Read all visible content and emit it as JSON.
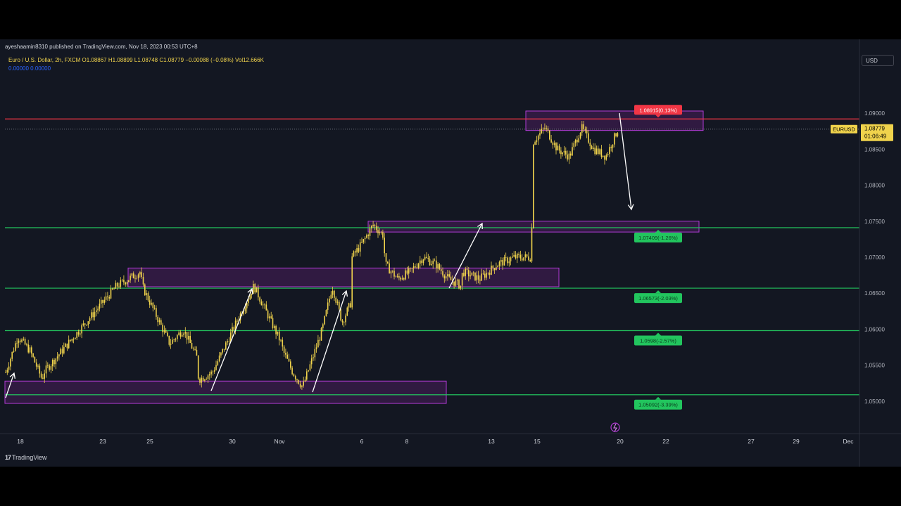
{
  "publisher": "ayeshaamin8310 published on TradingView.com, Nov 18, 2023 00:53 UTC+8",
  "legend": {
    "line1": "Euro / U.S. Dollar, 2h, FXCM  O1.08867  H1.08899  L1.08748  C1.08779  −0.00088 (−0.08%)  Vol12.666K",
    "line2": "0.00000  0.00000"
  },
  "currency_button": "USD",
  "brand": "TradingView",
  "colors": {
    "background": "#131722",
    "candle": "#f0d34c",
    "resistance_line": "#f23645",
    "support_line": "#22c55e",
    "zone": "#9c27b0",
    "arrow": "#ffffff",
    "price_tag": "#f0d34c"
  },
  "chart_data": {
    "type": "candlestick",
    "symbol": "EURUSD",
    "timeframe": "2h",
    "title": "Euro / U.S. Dollar, 2h, FXCM",
    "ylim": [
      1.0458,
      1.0983
    ],
    "y_ticks": [
      "1.05000",
      "1.05500",
      "1.06000",
      "1.06500",
      "1.07000",
      "1.07500",
      "1.08000",
      "1.08500",
      "1.09000"
    ],
    "x_ticks": [
      "18",
      "23",
      "25",
      "30",
      "Nov",
      "6",
      "8",
      "13",
      "15",
      "20",
      "22",
      "27",
      "29",
      "Dec"
    ],
    "last_price": {
      "symbol": "EURUSD",
      "value": "1.08779",
      "countdown": "01:06:49"
    },
    "price_path": [
      [
        "18",
        1.054
      ],
      [
        "18",
        1.059
      ],
      [
        "18",
        1.057
      ],
      [
        "18",
        1.053
      ],
      [
        "23",
        1.054
      ],
      [
        "23",
        1.058
      ],
      [
        "23",
        1.062
      ],
      [
        "23",
        1.066
      ],
      [
        "23",
        1.068
      ],
      [
        "25",
        1.066
      ],
      [
        "25",
        1.062
      ],
      [
        "25",
        1.058
      ],
      [
        "25",
        1.06
      ],
      [
        "25",
        1.056
      ],
      [
        "30",
        1.053
      ],
      [
        "30",
        1.054
      ],
      [
        "30",
        1.058
      ],
      [
        "30",
        1.062
      ],
      [
        "30",
        1.066
      ],
      [
        "30",
        1.062
      ],
      [
        "30",
        1.058
      ],
      [
        "Nov",
        1.057
      ],
      [
        "Nov",
        1.054
      ],
      [
        "Nov",
        1.052
      ],
      [
        "Nov",
        1.056
      ],
      [
        "Nov",
        1.06
      ],
      [
        "Nov",
        1.066
      ],
      [
        "Nov",
        1.061
      ],
      [
        "Nov",
        1.064
      ],
      [
        "6",
        1.07
      ],
      [
        "6",
        1.072
      ],
      [
        "6",
        1.0745
      ],
      [
        "6",
        1.073
      ],
      [
        "8",
        1.069
      ],
      [
        "8",
        1.067
      ],
      [
        "8",
        1.068
      ],
      [
        "8",
        1.07
      ],
      [
        "8",
        1.069
      ],
      [
        "8",
        1.067
      ],
      [
        "8",
        1.066
      ],
      [
        "13",
        1.068
      ],
      [
        "13",
        1.067
      ],
      [
        "13",
        1.069
      ],
      [
        "13",
        1.07
      ],
      [
        "13",
        1.07
      ],
      [
        "15",
        1.086
      ],
      [
        "15",
        1.088
      ],
      [
        "15",
        1.085
      ],
      [
        "15",
        1.084
      ],
      [
        "15",
        1.088
      ],
      [
        "15",
        1.085
      ],
      [
        "15",
        1.084
      ],
      [
        "15",
        1.0878
      ]
    ],
    "horizontal_levels": [
      {
        "name": "resistance",
        "price": 1.0892,
        "label": "1.08915(0.13%)",
        "color": "#f23645"
      },
      {
        "name": "support-1",
        "price": 1.0741,
        "label": "1.07409(-1.26%)",
        "color": "#22c55e"
      },
      {
        "name": "support-2",
        "price": 1.0657,
        "label": "1.06573(-2.03%)",
        "color": "#22c55e"
      },
      {
        "name": "support-3",
        "price": 1.0598,
        "label": "1.0598(-2.57%)",
        "color": "#22c55e"
      },
      {
        "name": "support-4",
        "price": 1.0509,
        "label": "1.05092(-3.39%)",
        "color": "#22c55e"
      }
    ],
    "zones": [
      {
        "name": "top-zone",
        "from": "15",
        "to": "20",
        "price_low": 1.0876,
        "price_high": 1.0903
      },
      {
        "name": "mid-zone",
        "from": "6",
        "to": "20",
        "price_low": 1.0735,
        "price_high": 1.075
      },
      {
        "name": "middle-zone",
        "from": "23",
        "to": "13",
        "price_low": 1.0659,
        "price_high": 1.0685
      },
      {
        "name": "bottom-zone",
        "from": "18",
        "to": "8",
        "price_low": 1.0497,
        "price_high": 1.0528
      }
    ]
  }
}
